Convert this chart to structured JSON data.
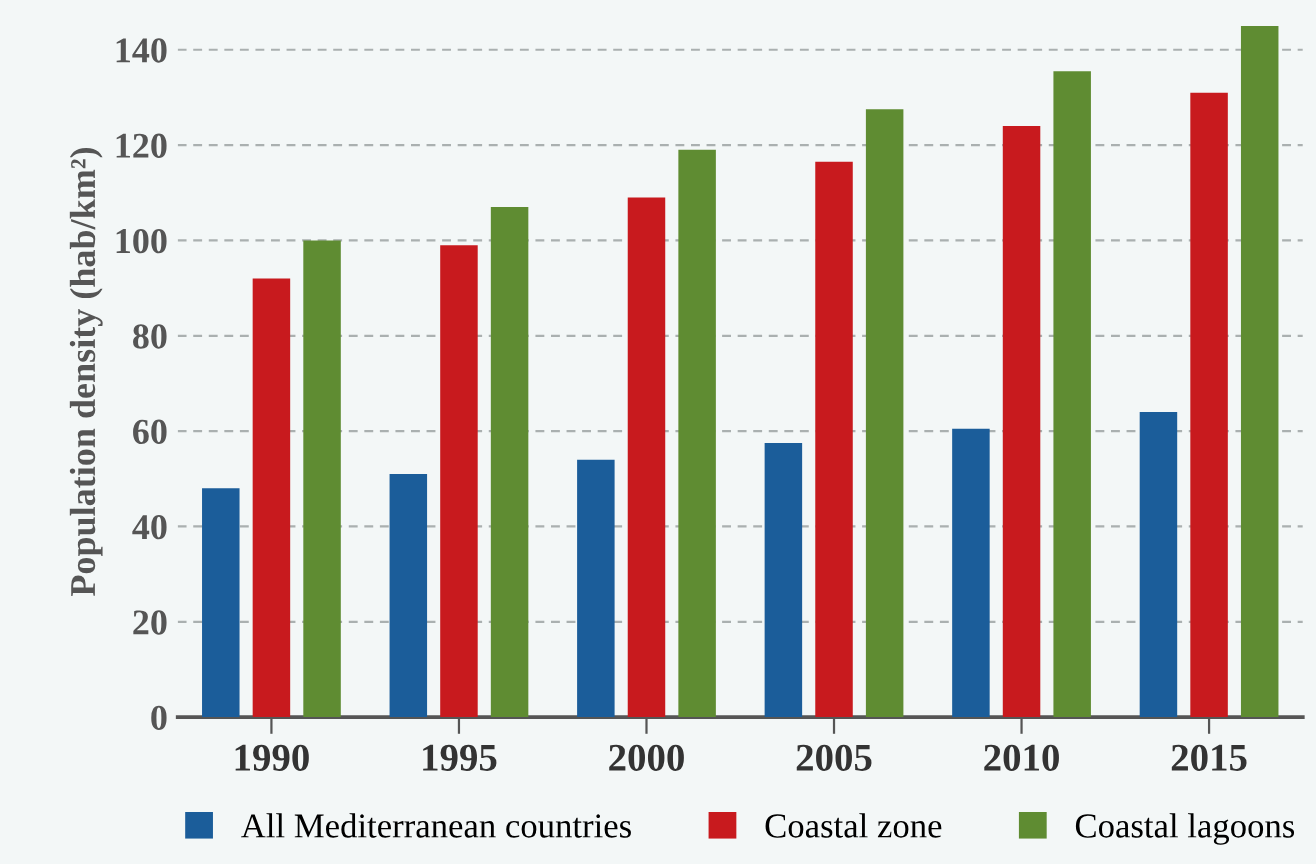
{
  "chart_data": {
    "type": "bar",
    "ylabel": "Population density (hab/km²)",
    "categories": [
      "1990",
      "1995",
      "2000",
      "2005",
      "2010",
      "2015"
    ],
    "series": [
      {
        "name": "All Mediterranean countries",
        "color": "#1b5d9a",
        "values": [
          48,
          51,
          54,
          57.5,
          60.5,
          64
        ]
      },
      {
        "name": "Coastal zone",
        "color": "#c81a1e",
        "values": [
          92,
          99,
          109,
          116.5,
          124,
          131
        ]
      },
      {
        "name": "Coastal lagoons",
        "color": "#5f8c32",
        "values": [
          100,
          107,
          119,
          127.5,
          135.5,
          145
        ]
      }
    ],
    "ylim": [
      0,
      145
    ],
    "yticks": [
      0,
      20,
      40,
      60,
      80,
      100,
      120,
      140
    ],
    "grid": "y",
    "legend": "bottom"
  }
}
